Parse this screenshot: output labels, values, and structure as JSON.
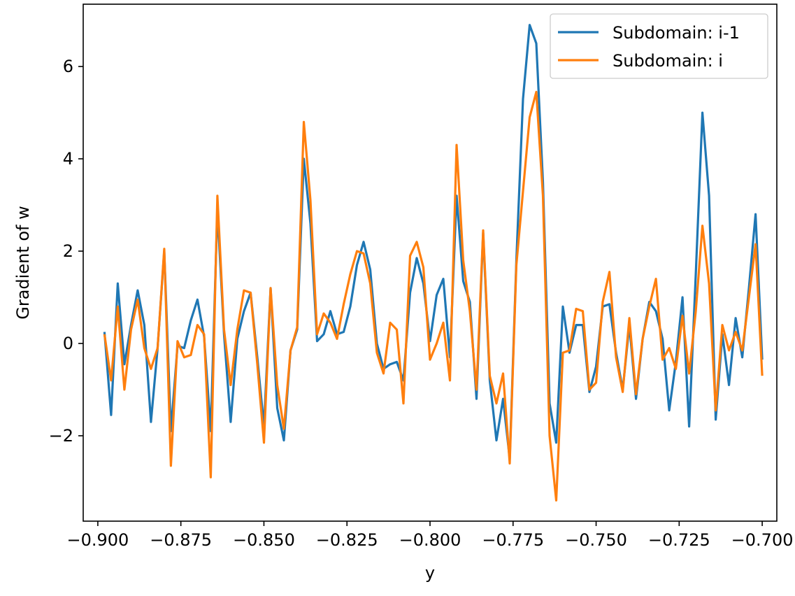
{
  "chart_data": {
    "type": "line",
    "title": "",
    "xlabel": "y",
    "ylabel": "Gradient of w",
    "xlim": [
      -0.9044,
      -0.6956
    ],
    "ylim": [
      -3.85,
      7.35
    ],
    "xticks": [
      -0.9,
      -0.875,
      -0.85,
      -0.825,
      -0.8,
      -0.775,
      -0.75,
      -0.725,
      -0.7
    ],
    "xtick_labels": [
      "−0.900",
      "−0.875",
      "−0.850",
      "−0.825",
      "−0.800",
      "−0.775",
      "−0.750",
      "−0.725",
      "−0.700"
    ],
    "yticks": [
      -2,
      0,
      2,
      4,
      6
    ],
    "ytick_labels": [
      "−2",
      "0",
      "2",
      "4",
      "6"
    ],
    "grid": false,
    "legend": "top-right",
    "x": [
      -0.898,
      -0.896,
      -0.894,
      -0.892,
      -0.89,
      -0.888,
      -0.886,
      -0.884,
      -0.882,
      -0.88,
      -0.878,
      -0.876,
      -0.874,
      -0.872,
      -0.87,
      -0.868,
      -0.866,
      -0.864,
      -0.862,
      -0.86,
      -0.858,
      -0.856,
      -0.854,
      -0.852,
      -0.85,
      -0.848,
      -0.846,
      -0.844,
      -0.842,
      -0.84,
      -0.838,
      -0.836,
      -0.834,
      -0.832,
      -0.83,
      -0.828,
      -0.826,
      -0.824,
      -0.822,
      -0.82,
      -0.818,
      -0.816,
      -0.814,
      -0.812,
      -0.81,
      -0.808,
      -0.806,
      -0.804,
      -0.802,
      -0.8,
      -0.798,
      -0.796,
      -0.794,
      -0.792,
      -0.79,
      -0.788,
      -0.786,
      -0.784,
      -0.782,
      -0.78,
      -0.778,
      -0.776,
      -0.774,
      -0.772,
      -0.77,
      -0.768,
      -0.766,
      -0.764,
      -0.762,
      -0.76,
      -0.758,
      -0.756,
      -0.754,
      -0.752,
      -0.75,
      -0.748,
      -0.746,
      -0.744,
      -0.742,
      -0.74,
      -0.738,
      -0.736,
      -0.734,
      -0.732,
      -0.73,
      -0.728,
      -0.726,
      -0.724,
      -0.722,
      -0.72,
      -0.718,
      -0.716,
      -0.714,
      -0.712,
      -0.71,
      -0.708,
      -0.706,
      -0.704,
      -0.702,
      -0.7
    ],
    "series": [
      {
        "name": "Subdomain: i-1",
        "color": "#1f77b4",
        "values": [
          0.25,
          -1.55,
          1.3,
          -0.45,
          0.4,
          1.15,
          0.4,
          -1.7,
          -0.1,
          2.0,
          -1.9,
          -0.05,
          -0.1,
          0.5,
          0.95,
          0.15,
          -1.9,
          2.9,
          0.2,
          -1.7,
          0.1,
          0.7,
          1.1,
          -0.3,
          -1.8,
          1.2,
          -1.4,
          -2.1,
          -0.15,
          0.3,
          4.0,
          2.6,
          0.05,
          0.2,
          0.7,
          0.2,
          0.25,
          0.8,
          1.7,
          2.2,
          1.6,
          0.0,
          -0.55,
          -0.45,
          -0.4,
          -0.8,
          1.1,
          1.85,
          1.3,
          0.05,
          1.05,
          1.4,
          -0.3,
          3.2,
          1.35,
          0.9,
          -1.2,
          2.4,
          -0.8,
          -2.1,
          -1.2,
          -2.5,
          1.8,
          5.3,
          6.9,
          6.5,
          3.5,
          -1.3,
          -2.15,
          0.8,
          -0.2,
          0.4,
          0.4,
          -1.05,
          -0.5,
          0.8,
          0.85,
          -0.2,
          -1.0,
          0.4,
          -1.2,
          0.1,
          0.9,
          0.7,
          0.1,
          -1.45,
          -0.4,
          1.0,
          -1.8,
          1.5,
          5.0,
          3.2,
          -1.65,
          0.2,
          -0.9,
          0.55,
          -0.3,
          1.2,
          2.8,
          -0.35
        ]
      },
      {
        "name": "Subdomain: i",
        "color": "#ff7f0e",
        "values": [
          0.2,
          -0.8,
          0.8,
          -1.0,
          0.3,
          0.95,
          -0.1,
          -0.55,
          -0.1,
          2.05,
          -2.65,
          0.05,
          -0.3,
          -0.25,
          0.4,
          0.2,
          -2.9,
          3.2,
          0.3,
          -0.9,
          0.3,
          1.15,
          1.1,
          -0.45,
          -2.15,
          1.2,
          -0.9,
          -1.85,
          -0.15,
          0.35,
          4.8,
          3.1,
          0.2,
          0.65,
          0.45,
          0.1,
          0.85,
          1.5,
          2.0,
          1.95,
          1.3,
          -0.2,
          -0.65,
          0.45,
          0.3,
          -1.3,
          1.9,
          2.2,
          1.65,
          -0.35,
          0.0,
          0.45,
          -0.8,
          4.3,
          1.8,
          0.7,
          -1.0,
          2.45,
          -0.7,
          -1.3,
          -0.65,
          -2.6,
          1.7,
          3.3,
          4.9,
          5.45,
          3.2,
          -2.0,
          -3.4,
          -0.2,
          -0.15,
          0.75,
          0.7,
          -1.0,
          -0.85,
          0.9,
          1.55,
          -0.3,
          -1.05,
          0.55,
          -1.1,
          0.1,
          0.8,
          1.4,
          -0.35,
          -0.1,
          -0.55,
          0.6,
          -0.65,
          0.7,
          2.55,
          1.3,
          -1.45,
          0.4,
          -0.15,
          0.25,
          -0.15,
          1.0,
          2.15,
          -0.7
        ]
      }
    ]
  }
}
